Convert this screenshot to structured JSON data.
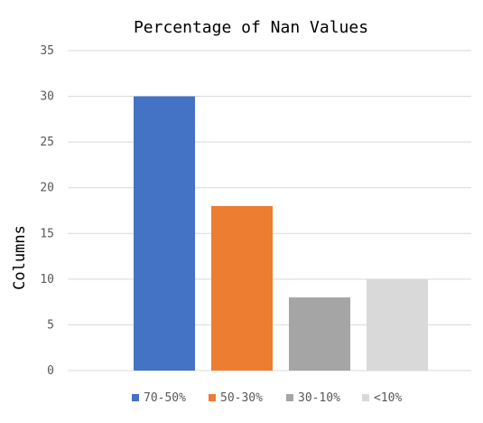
{
  "chart_data": {
    "type": "bar",
    "title": "Percentage of Nan Values",
    "xlabel": "",
    "ylabel": "Columns",
    "categories": [
      "70-50%",
      "50-30%",
      "30-10%",
      "<10%"
    ],
    "values": [
      30,
      18,
      8,
      10
    ],
    "colors": [
      "#4472c4",
      "#ed7d31",
      "#a5a5a5",
      "#d9d9d9"
    ],
    "ylim": [
      0,
      35
    ],
    "yticks": [
      "0",
      "5",
      "10",
      "15",
      "20",
      "25",
      "30",
      "35"
    ],
    "grid": true,
    "legend": "bottom"
  }
}
